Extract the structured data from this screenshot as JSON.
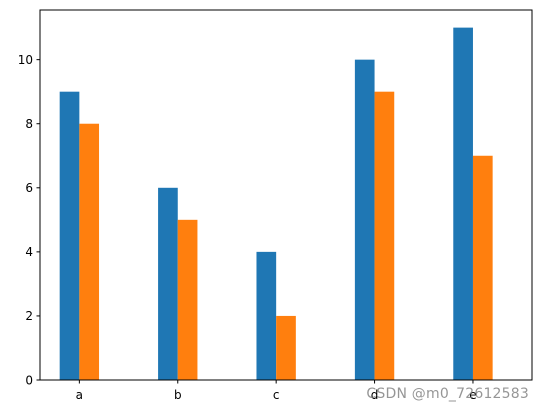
{
  "chart_data": {
    "type": "bar",
    "categories": [
      "a",
      "b",
      "c",
      "d",
      "e"
    ],
    "series": [
      {
        "color": "#1f77b4",
        "values": [
          9,
          6,
          4,
          10,
          11
        ]
      },
      {
        "color": "#ff7f0e",
        "values": [
          8,
          5,
          2,
          9,
          7
        ]
      }
    ],
    "title": "",
    "xlabel": "",
    "ylabel": "",
    "ylim": [
      0,
      11.55
    ],
    "yticks": [
      0,
      2,
      4,
      6,
      8,
      10
    ],
    "grid": false,
    "legend": false
  },
  "watermark": {
    "text": "CSDN @m0_72612583"
  }
}
